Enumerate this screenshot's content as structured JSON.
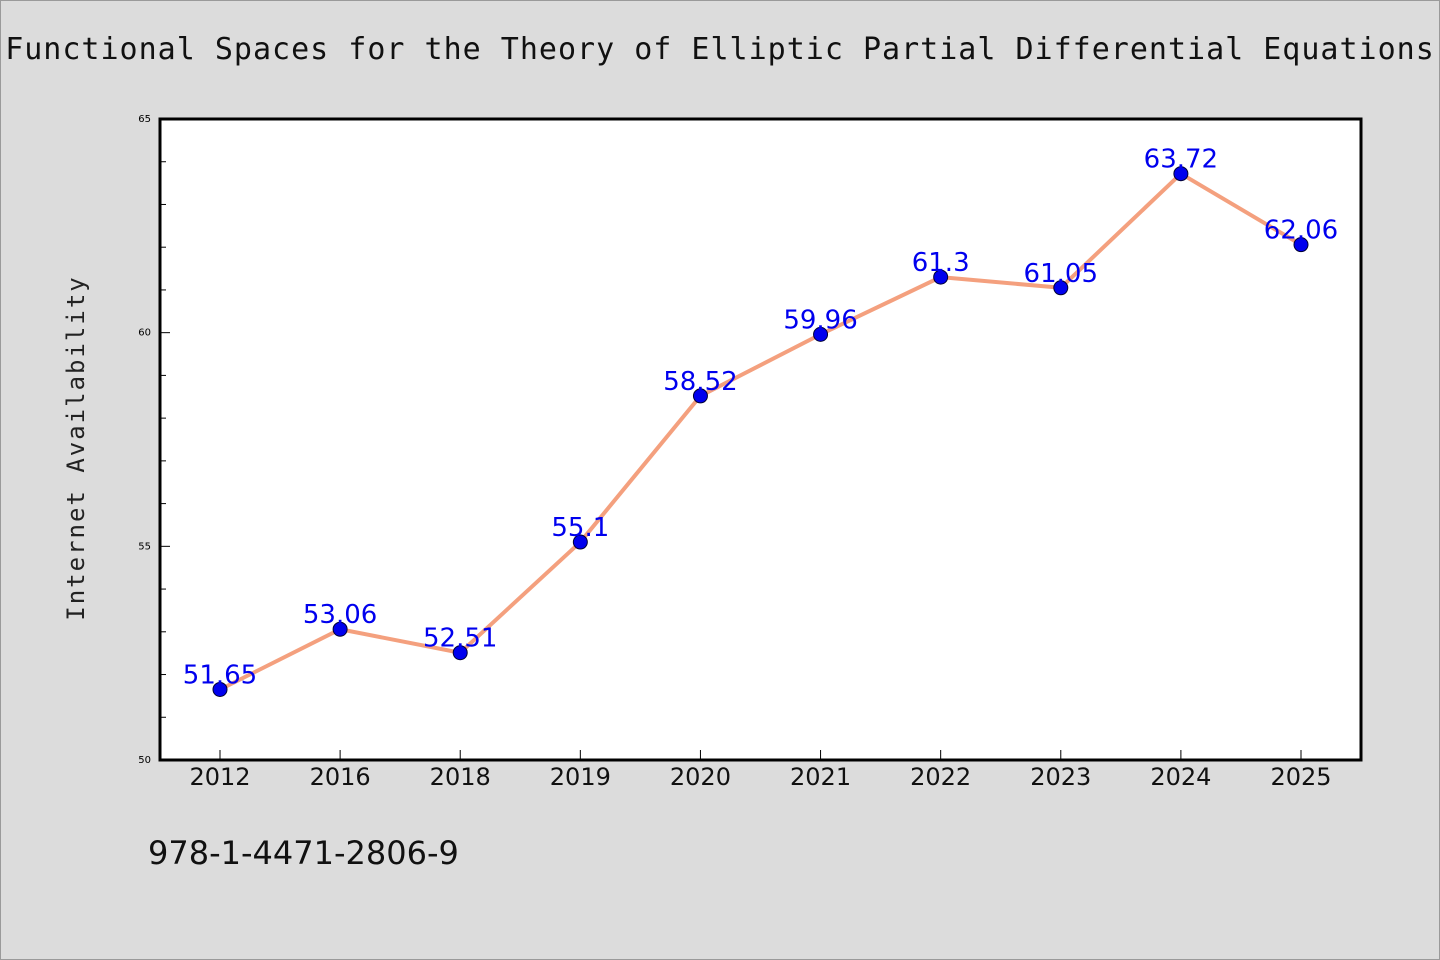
{
  "chart_data": {
    "type": "line",
    "title": "Functional Spaces for the Theory of Elliptic Partial Differential Equations",
    "ylabel": "Internet Availability",
    "xlabel": "",
    "categories": [
      "2012",
      "2016",
      "2018",
      "2019",
      "2020",
      "2021",
      "2022",
      "2023",
      "2024",
      "2025"
    ],
    "series": [
      {
        "values": [
          51.65,
          53.06,
          52.51,
          55.1,
          58.52,
          59.96,
          61.3,
          61.05,
          63.72,
          62.06
        ],
        "labels": [
          "51.65",
          "53.06",
          "52.51",
          "55.1",
          "58.52",
          "59.96",
          "61.3",
          "61.05",
          "63.72",
          "62.06"
        ]
      }
    ],
    "ylim": [
      50,
      65
    ],
    "y_ticks": [
      "50",
      "55",
      "60",
      "65"
    ],
    "grid": false,
    "line_color": "#f4a07e",
    "marker_color": "#0000ee",
    "label_color": "#0000ee"
  },
  "footer": {
    "code": "978-1-4471-2806-9"
  }
}
